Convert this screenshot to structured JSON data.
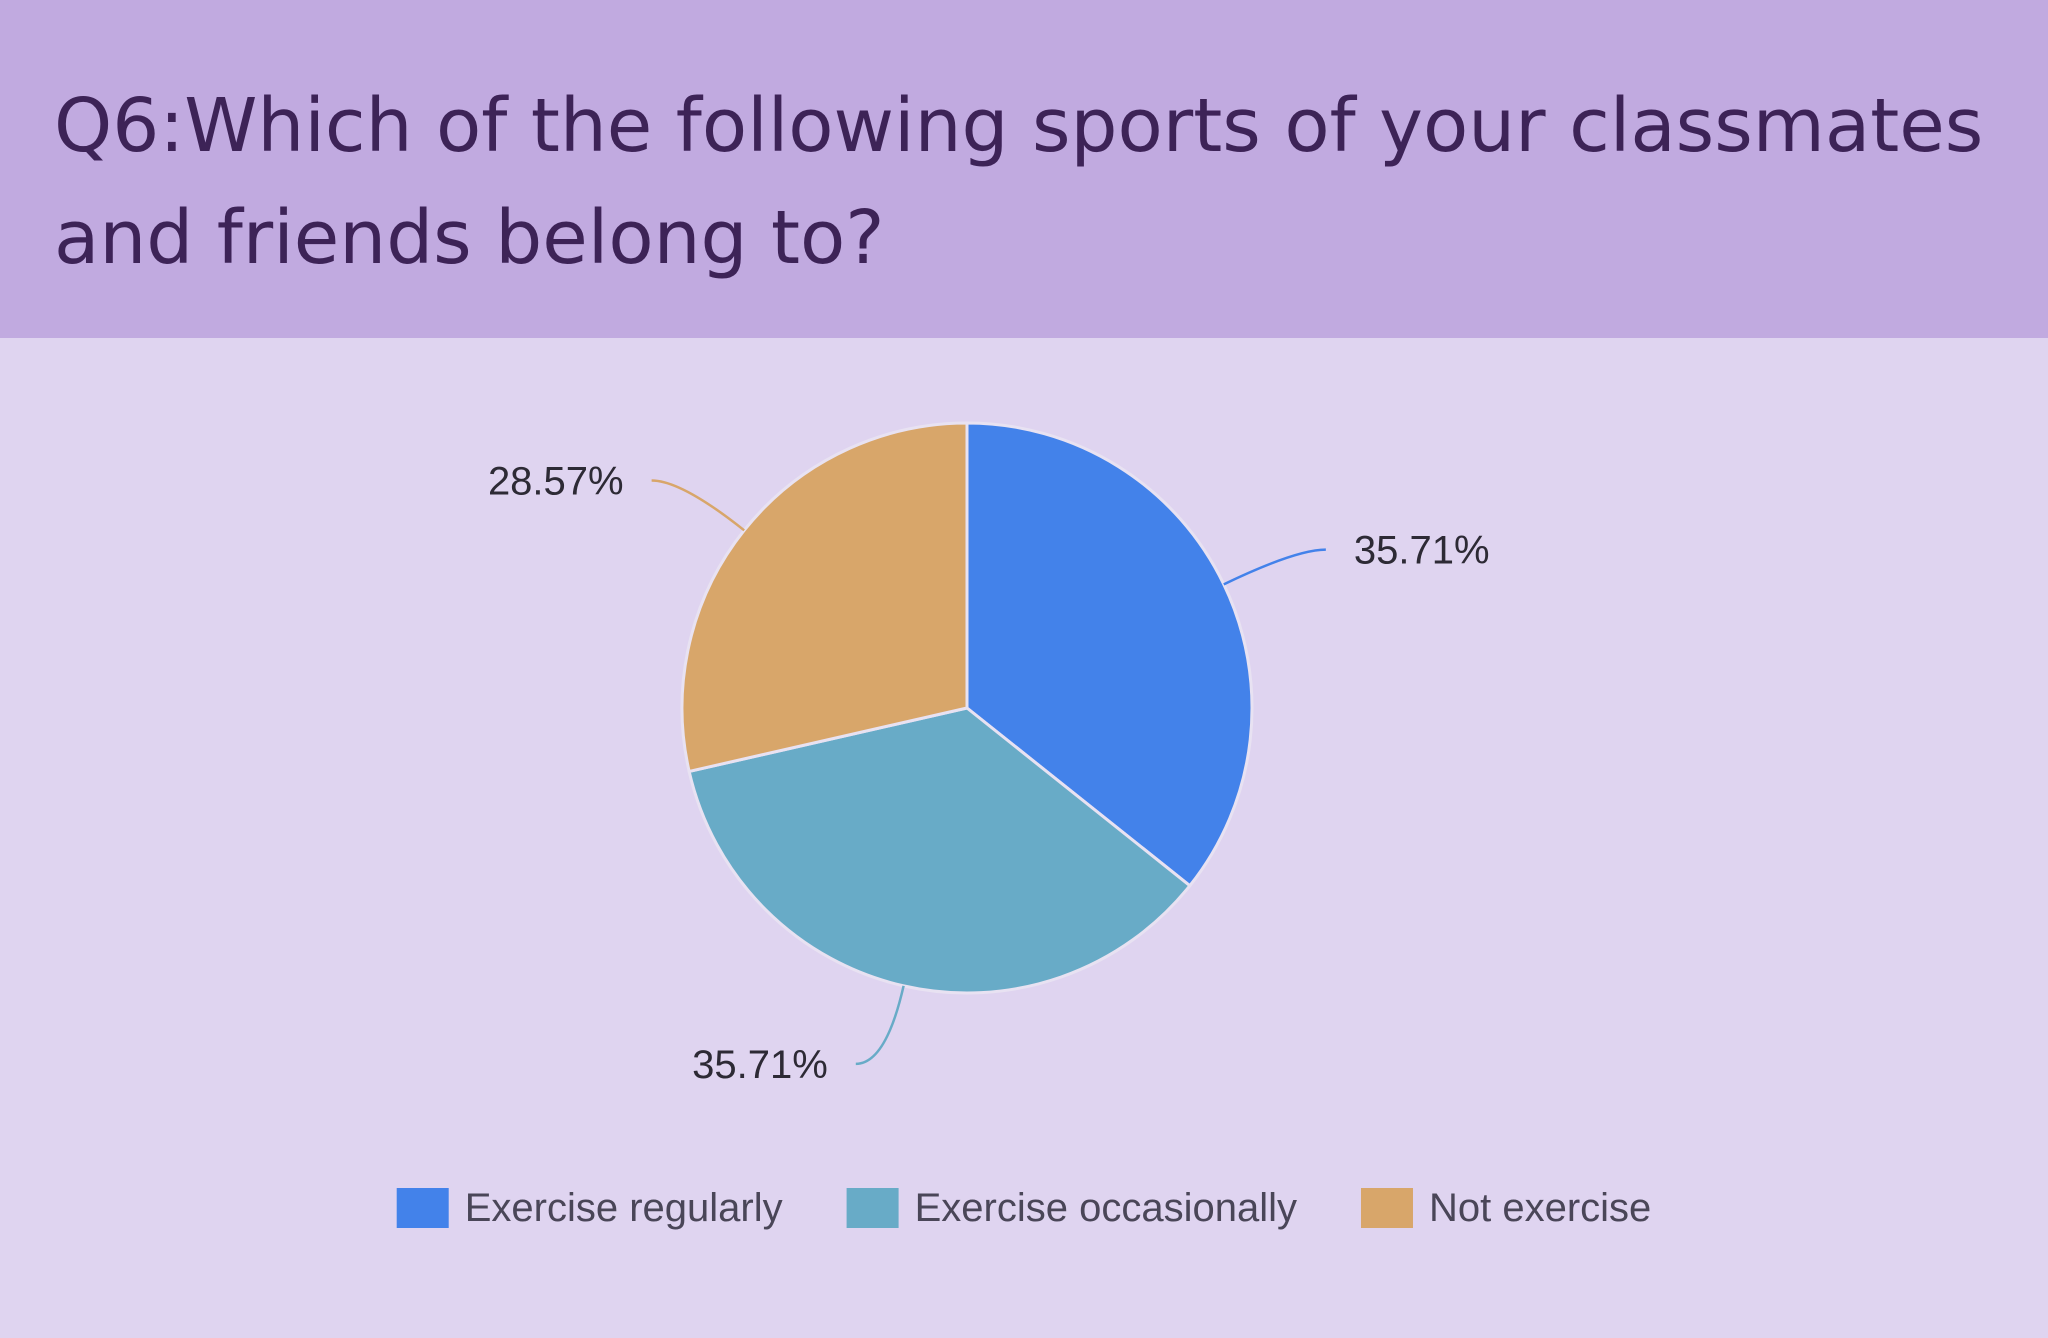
{
  "header": {
    "title": "Q6:Which of the following sports of your classmates and friends belong to?"
  },
  "chart_data": {
    "type": "pie",
    "slices": [
      {
        "name": "Exercise regularly",
        "value": 35.71,
        "label": "35.71%",
        "color": "#4382ea"
      },
      {
        "name": "Exercise occasionally",
        "value": 35.71,
        "label": "35.71%",
        "color": "#68abc7"
      },
      {
        "name": "Not exercise",
        "value": 28.57,
        "label": "28.57%",
        "color": "#d8a66a"
      }
    ],
    "legend_position": "bottom",
    "start_angle": "top",
    "direction": "clockwise"
  }
}
